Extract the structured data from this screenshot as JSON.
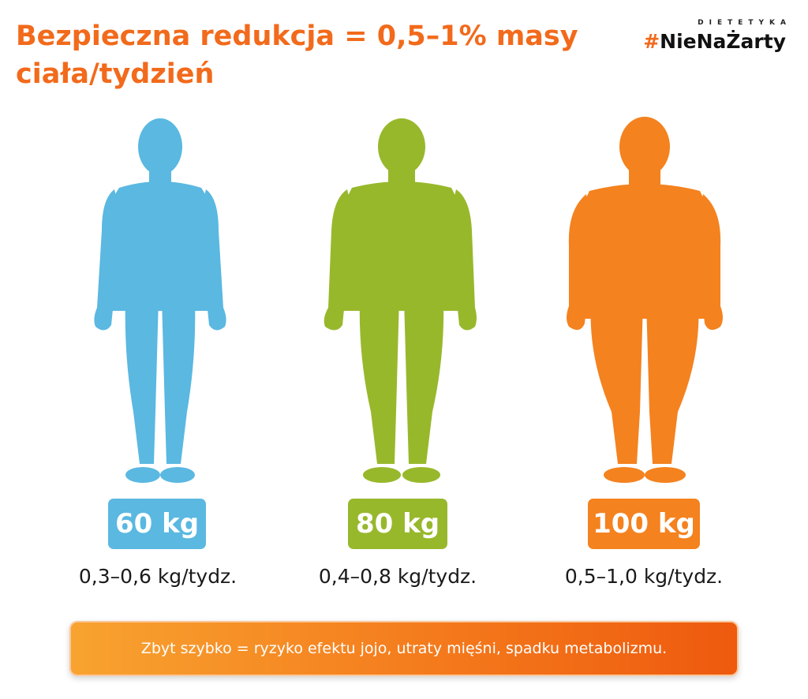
{
  "title": "Bezpieczna redukcja = 0,5–1% masy ciała/tydzień",
  "brand": {
    "small": "DIETETYKA",
    "main": "#NieNaŻarty"
  },
  "figures": [
    {
      "weight": "60 kg",
      "rate": "0,3–0,6 kg/tydz.",
      "color": "#5ab8e1",
      "icon": "slim-body-silhouette-icon"
    },
    {
      "weight": "80 kg",
      "rate": "0,4–0,8 kg/tydz.",
      "color": "#98b82c",
      "icon": "medium-body-silhouette-icon"
    },
    {
      "weight": "100 kg",
      "rate": "0,5–1,0 kg/tydz.",
      "color": "#f4821f",
      "icon": "heavy-body-silhouette-icon"
    }
  ],
  "warning": "Zbyt szybko = ryzyko efektu jojo, utraty mięśni, spadku metabolizmu."
}
